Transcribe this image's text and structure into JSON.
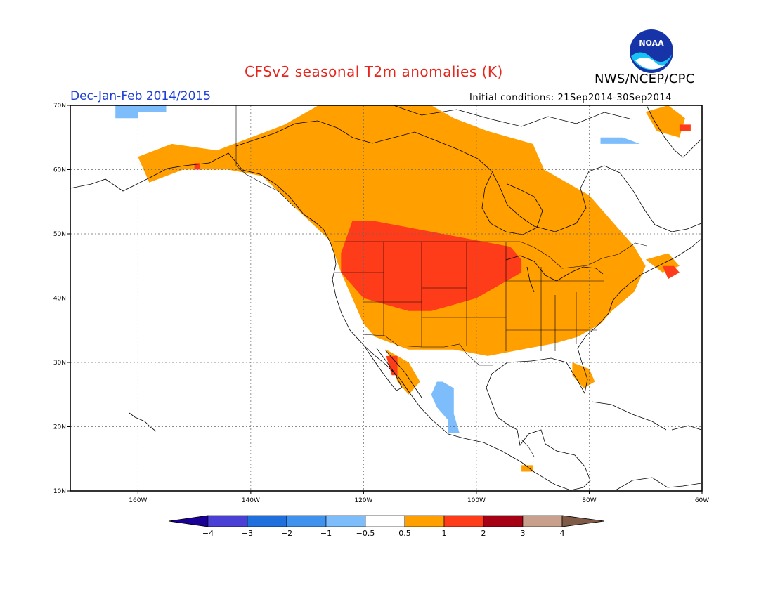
{
  "header": {
    "title": "CFSv2 seasonal T2m anomalies (K)",
    "organization": "NWS/NCEP/CPC",
    "season": "Dec-Jan-Feb 2014/2015",
    "initial_conditions": "Initial conditions: 21Sep2014-30Sep2014",
    "logo_text": "NOAA"
  },
  "map": {
    "lon_range": [
      -172,
      -60
    ],
    "lat_range": [
      10,
      70
    ],
    "lon_ticks": [
      {
        "value": -160,
        "label": "160W"
      },
      {
        "value": -140,
        "label": "140W"
      },
      {
        "value": -120,
        "label": "120W"
      },
      {
        "value": -100,
        "label": "100W"
      },
      {
        "value": -80,
        "label": "80W"
      },
      {
        "value": -60,
        "label": "60W"
      }
    ],
    "lat_ticks": [
      {
        "value": 10,
        "label": "10N"
      },
      {
        "value": 20,
        "label": "20N"
      },
      {
        "value": 30,
        "label": "30N"
      },
      {
        "value": 40,
        "label": "40N"
      },
      {
        "value": 50,
        "label": "50N"
      },
      {
        "value": 60,
        "label": "60N"
      },
      {
        "value": 70,
        "label": "70N"
      }
    ],
    "anomaly_regions": [
      {
        "category": "0.5-1",
        "color": "#ff9f00",
        "points": [
          [
            -128,
            70
          ],
          [
            -108,
            70
          ],
          [
            -104,
            68
          ],
          [
            -98,
            66
          ],
          [
            -90,
            64
          ],
          [
            -88,
            60
          ],
          [
            -84,
            58
          ],
          [
            -80,
            56
          ],
          [
            -76,
            52
          ],
          [
            -72,
            48
          ],
          [
            -70,
            45
          ],
          [
            -72,
            41
          ],
          [
            -76,
            38
          ],
          [
            -78,
            36
          ],
          [
            -82,
            34
          ],
          [
            -86,
            33
          ],
          [
            -92,
            32
          ],
          [
            -98,
            31
          ],
          [
            -104,
            32
          ],
          [
            -108,
            32
          ],
          [
            -112,
            32
          ],
          [
            -115,
            33
          ],
          [
            -118,
            34
          ],
          [
            -120,
            36
          ],
          [
            -122,
            40
          ],
          [
            -124,
            44
          ],
          [
            -126,
            49
          ],
          [
            -132,
            54
          ],
          [
            -138,
            59
          ],
          [
            -144,
            60
          ],
          [
            -152,
            60
          ],
          [
            -158,
            58
          ],
          [
            -160,
            62
          ],
          [
            -154,
            64
          ],
          [
            -146,
            63
          ],
          [
            -140,
            65
          ],
          [
            -134,
            67
          ],
          [
            -130,
            69
          ]
        ]
      },
      {
        "category": "0.5-1",
        "color": "#ff9f00",
        "points": [
          [
            -116,
            32
          ],
          [
            -112,
            30
          ],
          [
            -110,
            27
          ],
          [
            -112,
            25
          ],
          [
            -114,
            27
          ],
          [
            -115,
            30
          ]
        ]
      },
      {
        "category": "0.5-1",
        "color": "#ff9f00",
        "points": [
          [
            -83,
            30
          ],
          [
            -80,
            29
          ],
          [
            -79,
            27
          ],
          [
            -81,
            26
          ],
          [
            -83,
            28
          ]
        ]
      },
      {
        "category": "0.5-1",
        "color": "#ff9f00",
        "points": [
          [
            -70,
            46
          ],
          [
            -66,
            47
          ],
          [
            -64,
            45
          ],
          [
            -67,
            44
          ]
        ]
      },
      {
        "category": "0.5-1",
        "color": "#ff9f00",
        "points": [
          [
            -70,
            69
          ],
          [
            -66,
            70
          ],
          [
            -63,
            68
          ],
          [
            -64,
            65
          ],
          [
            -68,
            66
          ]
        ]
      },
      {
        "category": "0.5-1",
        "color": "#ff9f00",
        "points": [
          [
            -92,
            14
          ],
          [
            -90,
            14
          ],
          [
            -90,
            13
          ],
          [
            -92,
            13
          ]
        ]
      },
      {
        "category": "1-2",
        "color": "#ff3c19",
        "points": [
          [
            -122,
            52
          ],
          [
            -118,
            52
          ],
          [
            -112,
            51
          ],
          [
            -106,
            50
          ],
          [
            -100,
            49
          ],
          [
            -94,
            48
          ],
          [
            -92,
            46
          ],
          [
            -92,
            44
          ],
          [
            -96,
            42
          ],
          [
            -100,
            40
          ],
          [
            -104,
            39
          ],
          [
            -108,
            38
          ],
          [
            -112,
            38
          ],
          [
            -116,
            39
          ],
          [
            -120,
            40
          ],
          [
            -122,
            42
          ],
          [
            -124,
            44
          ],
          [
            -124,
            47
          ]
        ]
      },
      {
        "category": "1-2",
        "color": "#ff3c19",
        "points": [
          [
            -116,
            31
          ],
          [
            -114,
            31
          ],
          [
            -114,
            28
          ],
          [
            -115,
            28
          ]
        ]
      },
      {
        "category": "1-2",
        "color": "#ff3c19",
        "points": [
          [
            -67,
            45
          ],
          [
            -65,
            45
          ],
          [
            -64,
            44
          ],
          [
            -66,
            43
          ]
        ]
      },
      {
        "category": "1-2",
        "color": "#ff3c19",
        "points": [
          [
            -150,
            61
          ],
          [
            -149,
            61
          ],
          [
            -149,
            60
          ],
          [
            -150,
            60
          ]
        ]
      },
      {
        "category": "1-2",
        "color": "#ff3c19",
        "points": [
          [
            -64,
            67
          ],
          [
            -62,
            67
          ],
          [
            -62,
            66
          ],
          [
            -64,
            66
          ]
        ]
      },
      {
        "category": "-1--0.5",
        "color": "#7ebdfc",
        "points": [
          [
            -164,
            70
          ],
          [
            -155,
            70
          ],
          [
            -155,
            69
          ],
          [
            -160,
            69
          ],
          [
            -160,
            68
          ],
          [
            -164,
            68
          ]
        ]
      },
      {
        "category": "-1--0.5",
        "color": "#7ebdfc",
        "points": [
          [
            -107,
            27
          ],
          [
            -106,
            27
          ],
          [
            -104,
            26
          ],
          [
            -104,
            22
          ],
          [
            -103,
            19
          ],
          [
            -105,
            19
          ],
          [
            -105,
            21
          ],
          [
            -107,
            23
          ],
          [
            -108,
            25
          ]
        ]
      },
      {
        "category": "-1--0.5",
        "color": "#7ebdfc",
        "points": [
          [
            -78,
            65
          ],
          [
            -74,
            65
          ],
          [
            -71,
            64
          ],
          [
            -73,
            64
          ],
          [
            -78,
            64
          ]
        ]
      }
    ],
    "colorbar": {
      "levels": [
        "-4",
        "-3",
        "-2",
        "-1",
        "-0.5",
        "0.5",
        "1",
        "2",
        "3",
        "4"
      ],
      "colors": [
        "#1a0096",
        "#4a40d6",
        "#1f6fdc",
        "#3f92ee",
        "#7ebdfc",
        "#ffffff",
        "#ff9f00",
        "#ff3c19",
        "#a50014",
        "#c8a08c",
        "#7f5a46"
      ]
    }
  }
}
